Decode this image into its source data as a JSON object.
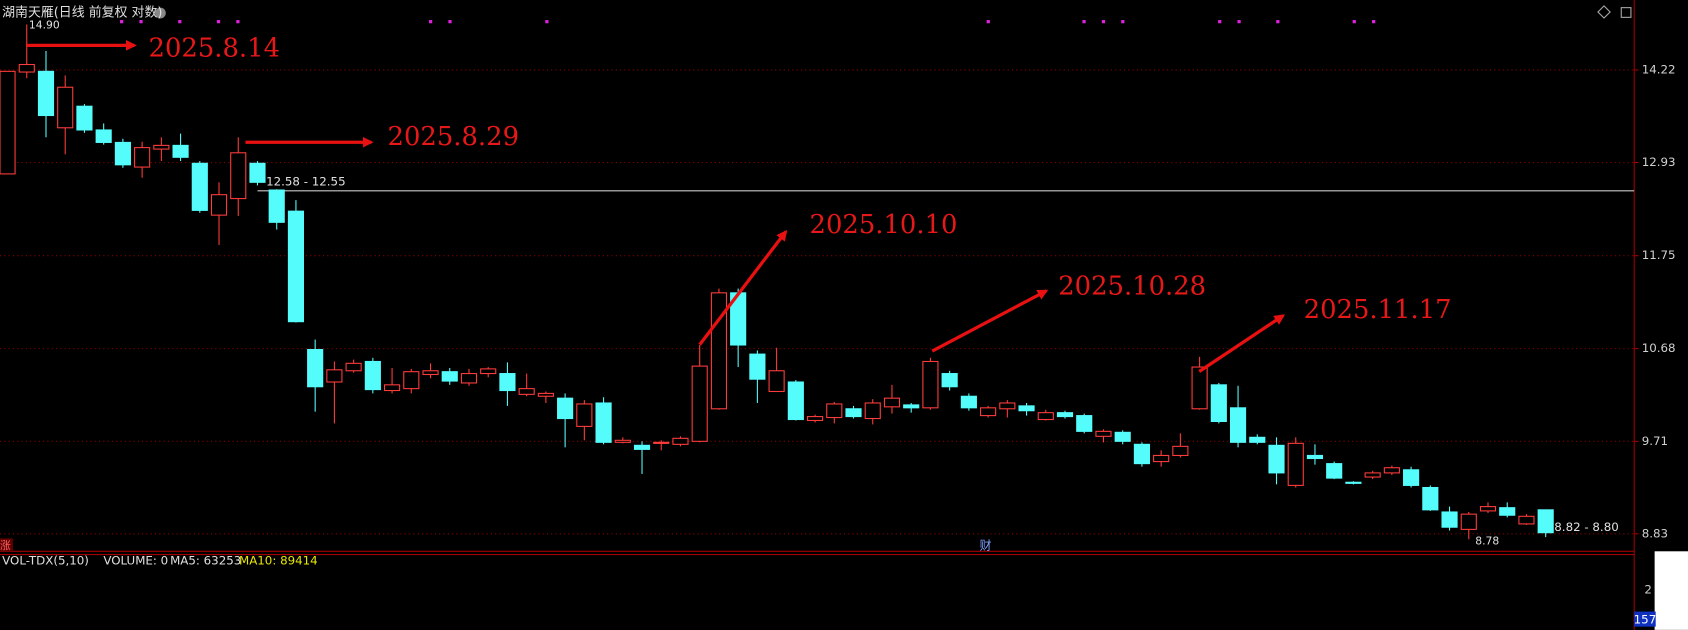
{
  "chart_data": {
    "type": "candlestick",
    "title": "湖南天雁(日线 前复权 对数)",
    "log": true,
    "grid": true,
    "up_color": "#ff3c3c",
    "down_color": "#54fcfc",
    "ylim": [
      8.74,
      15.11
    ],
    "yticks": [
      8.83,
      9.71,
      10.68,
      11.75,
      12.93,
      14.22
    ],
    "open": [
      12.78,
      14.19,
      14.2,
      13.4,
      13.7,
      13.37,
      13.2,
      12.87,
      13.11,
      13.16,
      12.92,
      12.25,
      12.46,
      12.92,
      12.57,
      12.3,
      10.67,
      10.32,
      10.44,
      10.54,
      10.23,
      10.25,
      10.4,
      10.43,
      10.31,
      10.41,
      10.41,
      10.19,
      10.17,
      10.15,
      9.86,
      10.1,
      9.7,
      9.67,
      9.69,
      9.68,
      9.71,
      10.04,
      11.31,
      10.62,
      10.22,
      10.32,
      9.92,
      9.95,
      10.04,
      9.94,
      10.06,
      10.08,
      10.05,
      10.41,
      10.17,
      9.97,
      10.04,
      10.07,
      9.93,
      10.0,
      9.97,
      9.76,
      9.8,
      9.68,
      9.51,
      9.57,
      10.04,
      10.29,
      10.05,
      9.75,
      9.67,
      9.28,
      9.57,
      9.49,
      9.31,
      9.36,
      9.4,
      9.43,
      9.26,
      9.03,
      8.87,
      9.04,
      9.07,
      8.92,
      9.05
    ],
    "high": [
      14.2,
      14.9,
      14.5,
      14.14,
      13.73,
      13.46,
      13.25,
      13.21,
      13.27,
      13.32,
      12.95,
      12.67,
      13.27,
      12.95,
      12.58,
      12.44,
      10.78,
      10.54,
      10.56,
      10.58,
      10.47,
      10.46,
      10.52,
      10.47,
      10.46,
      10.48,
      10.53,
      10.41,
      10.22,
      10.2,
      10.13,
      10.16,
      9.75,
      9.71,
      9.72,
      9.76,
      10.72,
      11.36,
      11.36,
      10.66,
      10.69,
      10.34,
      9.98,
      10.11,
      10.07,
      10.14,
      10.29,
      10.1,
      10.58,
      10.44,
      10.2,
      10.07,
      10.13,
      10.1,
      10.03,
      10.02,
      9.99,
      9.83,
      9.82,
      9.7,
      9.62,
      9.79,
      10.59,
      10.31,
      10.28,
      9.78,
      9.75,
      9.75,
      9.68,
      9.51,
      9.32,
      9.42,
      9.47,
      9.46,
      9.28,
      9.08,
      9.03,
      9.12,
      9.12,
      9.01,
      9.05
    ],
    "low": [
      12.78,
      14.1,
      13.27,
      13.04,
      13.33,
      13.17,
      12.86,
      12.73,
      12.95,
      12.95,
      12.28,
      11.88,
      12.24,
      12.63,
      12.07,
      10.97,
      10.01,
      9.89,
      10.42,
      10.2,
      10.2,
      10.2,
      10.36,
      10.29,
      10.28,
      10.37,
      10.07,
      10.17,
      10.1,
      9.65,
      9.72,
      9.68,
      9.69,
      9.39,
      9.62,
      9.66,
      9.7,
      10.03,
      10.48,
      10.1,
      10.22,
      9.92,
      9.9,
      9.89,
      9.94,
      9.88,
      9.99,
      10.0,
      10.03,
      10.23,
      10.02,
      9.95,
      9.95,
      9.97,
      9.92,
      9.94,
      9.79,
      9.7,
      9.68,
      9.46,
      9.46,
      9.55,
      10.03,
      9.89,
      9.65,
      9.68,
      9.29,
      9.26,
      9.48,
      9.34,
      9.29,
      9.34,
      9.38,
      9.26,
      9.04,
      8.86,
      8.78,
      9.02,
      8.98,
      8.91,
      8.8
    ],
    "close": [
      14.2,
      14.3,
      13.57,
      13.97,
      13.37,
      13.2,
      12.9,
      13.13,
      13.16,
      13.0,
      12.31,
      12.51,
      13.06,
      12.67,
      12.16,
      10.98,
      10.27,
      10.45,
      10.52,
      10.24,
      10.29,
      10.43,
      10.44,
      10.33,
      10.41,
      10.46,
      10.23,
      10.25,
      10.2,
      9.94,
      10.09,
      9.7,
      9.72,
      9.63,
      9.7,
      9.74,
      10.49,
      11.31,
      10.72,
      10.35,
      10.44,
      9.93,
      9.96,
      10.09,
      9.96,
      10.1,
      10.15,
      10.05,
      10.54,
      10.27,
      10.05,
      10.05,
      10.1,
      10.02,
      10.0,
      9.96,
      9.81,
      9.81,
      9.71,
      9.49,
      9.57,
      9.66,
      10.48,
      9.91,
      9.7,
      9.7,
      9.4,
      9.69,
      9.54,
      9.35,
      9.3,
      9.4,
      9.45,
      9.28,
      9.05,
      8.89,
      9.01,
      9.08,
      9.0,
      8.99,
      8.84
    ],
    "reference_line": 12.56,
    "high_label": "14.90",
    "low_label": "8.78",
    "range_labels": [
      "12.58 - 12.55",
      "8.82 - 8.80"
    ],
    "annotations": [
      "2025.8.14",
      "2025.8.29",
      "2025.10.10",
      "2025.10.28",
      "2025.11.17"
    ],
    "markers": [
      "涨",
      "财"
    ]
  },
  "volume_panel": {
    "title": "VOL-TDX(5,10)",
    "volume": "VOLUME: 0",
    "ma5": "MA5: 63253",
    "ma10": "MA10: 89414",
    "axis_labels": [
      "2",
      "157"
    ]
  }
}
